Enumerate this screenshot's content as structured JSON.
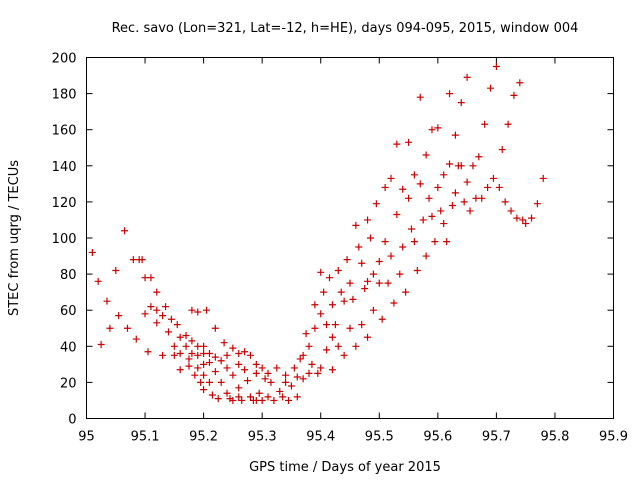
{
  "chart_data": {
    "type": "scatter",
    "title": "Rec. savo (Lon=321, Lat=-12, h=HE), days 094-095, 2015, window 004",
    "xlabel": "GPS time / Days of year 2015",
    "ylabel": "STEC from uqrg / TECUs",
    "xlim": [
      95,
      95.9
    ],
    "ylim": [
      0,
      200
    ],
    "xticks": [
      "95",
      "95.1",
      "95.2",
      "95.3",
      "95.4",
      "95.5",
      "95.6",
      "95.7",
      "95.8",
      "95.9"
    ],
    "yticks": [
      "0",
      "20",
      "40",
      "60",
      "80",
      "100",
      "120",
      "140",
      "160",
      "180",
      "200"
    ],
    "grid": false,
    "marker": "plus",
    "color": "#cc0000",
    "series": [
      {
        "points": [
          [
            95.01,
            92
          ],
          [
            95.02,
            76
          ],
          [
            95.025,
            41
          ],
          [
            95.035,
            65
          ],
          [
            95.04,
            50
          ],
          [
            95.05,
            82
          ],
          [
            95.055,
            57
          ],
          [
            95.065,
            104
          ],
          [
            95.07,
            50
          ],
          [
            95.08,
            88
          ],
          [
            95.085,
            44
          ],
          [
            95.09,
            88
          ],
          [
            95.095,
            88
          ],
          [
            95.1,
            78
          ],
          [
            95.1,
            58
          ],
          [
            95.105,
            37
          ],
          [
            95.11,
            78
          ],
          [
            95.11,
            62
          ],
          [
            95.12,
            70
          ],
          [
            95.12,
            60
          ],
          [
            95.12,
            53
          ],
          [
            95.13,
            57
          ],
          [
            95.13,
            35
          ],
          [
            95.135,
            62
          ],
          [
            95.14,
            48
          ],
          [
            95.145,
            55
          ],
          [
            95.15,
            35
          ],
          [
            95.15,
            40
          ],
          [
            95.155,
            52
          ],
          [
            95.16,
            45
          ],
          [
            95.16,
            36
          ],
          [
            95.16,
            27
          ],
          [
            95.17,
            46
          ],
          [
            95.17,
            40
          ],
          [
            95.175,
            33
          ],
          [
            95.175,
            29
          ],
          [
            95.18,
            43
          ],
          [
            95.18,
            36
          ],
          [
            95.18,
            60
          ],
          [
            95.185,
            24
          ],
          [
            95.19,
            40
          ],
          [
            95.19,
            35
          ],
          [
            95.19,
            28
          ],
          [
            95.19,
            59
          ],
          [
            95.195,
            20
          ],
          [
            95.2,
            40
          ],
          [
            95.2,
            36
          ],
          [
            95.2,
            30
          ],
          [
            95.2,
            24
          ],
          [
            95.2,
            16
          ],
          [
            95.205,
            60
          ],
          [
            95.21,
            36
          ],
          [
            95.21,
            31
          ],
          [
            95.21,
            20
          ],
          [
            95.215,
            13
          ],
          [
            95.22,
            50
          ],
          [
            95.22,
            34
          ],
          [
            95.22,
            26
          ],
          [
            95.225,
            11
          ],
          [
            95.23,
            32
          ],
          [
            95.23,
            20
          ],
          [
            95.235,
            42
          ],
          [
            95.24,
            35
          ],
          [
            95.24,
            28
          ],
          [
            95.24,
            14
          ],
          [
            95.245,
            11
          ],
          [
            95.25,
            39
          ],
          [
            95.25,
            24
          ],
          [
            95.25,
            10
          ],
          [
            95.26,
            36
          ],
          [
            95.26,
            30
          ],
          [
            95.26,
            17
          ],
          [
            95.26,
            12
          ],
          [
            95.265,
            10
          ],
          [
            95.27,
            37
          ],
          [
            95.27,
            27
          ],
          [
            95.275,
            21
          ],
          [
            95.28,
            35
          ],
          [
            95.28,
            12
          ],
          [
            95.285,
            10
          ],
          [
            95.29,
            30
          ],
          [
            95.29,
            25
          ],
          [
            95.29,
            10
          ],
          [
            95.295,
            14
          ],
          [
            95.3,
            28
          ],
          [
            95.3,
            10
          ],
          [
            95.305,
            22
          ],
          [
            95.31,
            25
          ],
          [
            95.31,
            12
          ],
          [
            95.315,
            20
          ],
          [
            95.32,
            10
          ],
          [
            95.325,
            28
          ],
          [
            95.33,
            15
          ],
          [
            95.335,
            12
          ],
          [
            95.34,
            24
          ],
          [
            95.34,
            20
          ],
          [
            95.345,
            10
          ],
          [
            95.35,
            18
          ],
          [
            95.355,
            28
          ],
          [
            95.36,
            23
          ],
          [
            95.36,
            12
          ],
          [
            95.365,
            33
          ],
          [
            95.37,
            35
          ],
          [
            95.37,
            22
          ],
          [
            95.375,
            47
          ],
          [
            95.38,
            40
          ],
          [
            95.38,
            25
          ],
          [
            95.385,
            30
          ],
          [
            95.39,
            63
          ],
          [
            95.39,
            50
          ],
          [
            95.395,
            25
          ],
          [
            95.4,
            81
          ],
          [
            95.4,
            58
          ],
          [
            95.4,
            28
          ],
          [
            95.405,
            70
          ],
          [
            95.41,
            52
          ],
          [
            95.41,
            38
          ],
          [
            95.415,
            78
          ],
          [
            95.42,
            63
          ],
          [
            95.42,
            45
          ],
          [
            95.42,
            27
          ],
          [
            95.425,
            52
          ],
          [
            95.43,
            82
          ],
          [
            95.43,
            40
          ],
          [
            95.435,
            70
          ],
          [
            95.44,
            65
          ],
          [
            95.44,
            35
          ],
          [
            95.445,
            88
          ],
          [
            95.45,
            75
          ],
          [
            95.45,
            50
          ],
          [
            95.455,
            66
          ],
          [
            95.46,
            107
          ],
          [
            95.46,
            40
          ],
          [
            95.465,
            95
          ],
          [
            95.47,
            86
          ],
          [
            95.47,
            52
          ],
          [
            95.475,
            72
          ],
          [
            95.48,
            110
          ],
          [
            95.48,
            76
          ],
          [
            95.48,
            45
          ],
          [
            95.485,
            100
          ],
          [
            95.49,
            80
          ],
          [
            95.49,
            60
          ],
          [
            95.495,
            119
          ],
          [
            95.5,
            87
          ],
          [
            95.5,
            75
          ],
          [
            95.505,
            55
          ],
          [
            95.51,
            128
          ],
          [
            95.51,
            98
          ],
          [
            95.515,
            75
          ],
          [
            95.52,
            133
          ],
          [
            95.52,
            90
          ],
          [
            95.525,
            64
          ],
          [
            95.53,
            152
          ],
          [
            95.53,
            113
          ],
          [
            95.535,
            80
          ],
          [
            95.54,
            127
          ],
          [
            95.54,
            95
          ],
          [
            95.545,
            70
          ],
          [
            95.55,
            153
          ],
          [
            95.55,
            122
          ],
          [
            95.555,
            105
          ],
          [
            95.56,
            135
          ],
          [
            95.56,
            98
          ],
          [
            95.565,
            82
          ],
          [
            95.57,
            178
          ],
          [
            95.57,
            130
          ],
          [
            95.575,
            110
          ],
          [
            95.58,
            146
          ],
          [
            95.58,
            90
          ],
          [
            95.585,
            122
          ],
          [
            95.59,
            160
          ],
          [
            95.59,
            112
          ],
          [
            95.595,
            98
          ],
          [
            95.6,
            161
          ],
          [
            95.6,
            128
          ],
          [
            95.605,
            115
          ],
          [
            95.61,
            135
          ],
          [
            95.61,
            108
          ],
          [
            95.615,
            98
          ],
          [
            95.62,
            180
          ],
          [
            95.62,
            141
          ],
          [
            95.625,
            118
          ],
          [
            95.63,
            157
          ],
          [
            95.63,
            125
          ],
          [
            95.635,
            140
          ],
          [
            95.64,
            175
          ],
          [
            95.64,
            140
          ],
          [
            95.645,
            120
          ],
          [
            95.65,
            189
          ],
          [
            95.65,
            131
          ],
          [
            95.655,
            115
          ],
          [
            95.66,
            140
          ],
          [
            95.665,
            122
          ],
          [
            95.67,
            145
          ],
          [
            95.675,
            122
          ],
          [
            95.68,
            163
          ],
          [
            95.685,
            128
          ],
          [
            95.69,
            183
          ],
          [
            95.695,
            133
          ],
          [
            95.7,
            195
          ],
          [
            95.705,
            128
          ],
          [
            95.71,
            149
          ],
          [
            95.715,
            120
          ],
          [
            95.72,
            163
          ],
          [
            95.725,
            115
          ],
          [
            95.73,
            179
          ],
          [
            95.735,
            111
          ],
          [
            95.74,
            186
          ],
          [
            95.745,
            110
          ],
          [
            95.75,
            108
          ],
          [
            95.76,
            111
          ],
          [
            95.77,
            119
          ],
          [
            95.78,
            133
          ]
        ]
      }
    ]
  }
}
